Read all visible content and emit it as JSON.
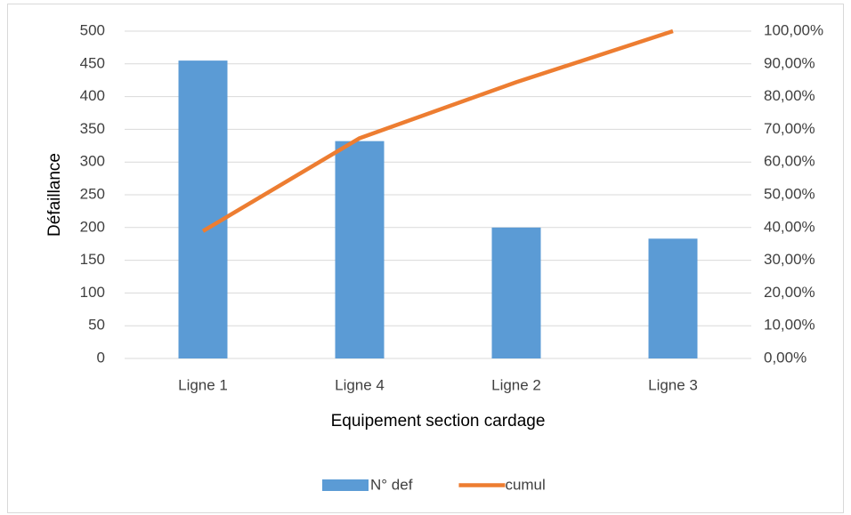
{
  "chart_data": {
    "type": "bar",
    "x_label": "Equipement section cardage",
    "y_label": "Défaillance",
    "categories": [
      "Ligne 1",
      "Ligne 4",
      "Ligne 2",
      "Ligne 3"
    ],
    "series": [
      {
        "name": "N° def",
        "type": "bar",
        "color": "#5b9bd5",
        "values": [
          455,
          332,
          200,
          183
        ]
      },
      {
        "name": "cumul",
        "type": "line",
        "axis": "y2",
        "color": "#ed7d31",
        "values": [
          38.9,
          67.3,
          84.4,
          100
        ]
      }
    ],
    "ylim": [
      0,
      500
    ],
    "yticks": [
      0,
      50,
      100,
      150,
      200,
      250,
      300,
      350,
      400,
      450,
      500
    ],
    "y2lim": [
      0,
      100
    ],
    "y2ticks": [
      {
        "value": 0,
        "label": "0,00%"
      },
      {
        "value": 10,
        "label": "10,00%"
      },
      {
        "value": 20,
        "label": "20,00%"
      },
      {
        "value": 30,
        "label": "30,00%"
      },
      {
        "value": 40,
        "label": "40,00%"
      },
      {
        "value": 50,
        "label": "50,00%"
      },
      {
        "value": 60,
        "label": "60,00%"
      },
      {
        "value": 70,
        "label": "70,00%"
      },
      {
        "value": 80,
        "label": "80,00%"
      },
      {
        "value": 90,
        "label": "90,00%"
      },
      {
        "value": 100,
        "label": "100,00%"
      }
    ],
    "grid": true,
    "legend": "bottom"
  }
}
